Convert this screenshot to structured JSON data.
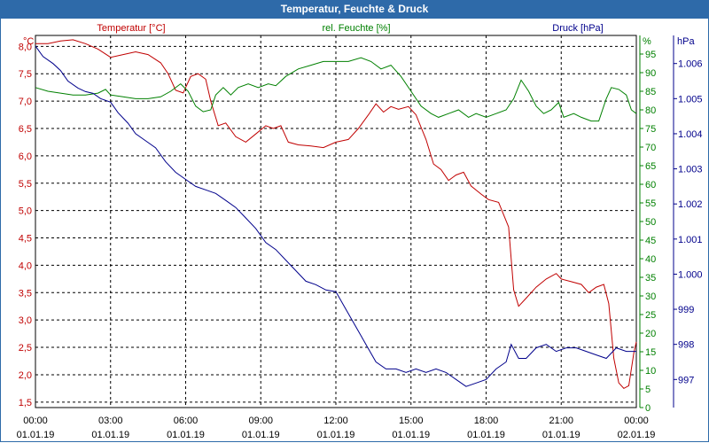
{
  "window": {
    "title": "Temperatur, Feuchte & Druck"
  },
  "colors": {
    "title_bg": "#2e6aa9",
    "temperature": "#c00000",
    "humidity": "#008000",
    "pressure": "#00008b",
    "grid": "#000000"
  },
  "chart_data": {
    "type": "line",
    "title": "Temperatur, Feuchte & Druck",
    "x_ticks": [
      {
        "t": 0,
        "time": "00:00",
        "date": "01.01.19"
      },
      {
        "t": 3,
        "time": "03:00",
        "date": "01.01.19"
      },
      {
        "t": 6,
        "time": "06:00",
        "date": "01.01.19"
      },
      {
        "t": 9,
        "time": "09:00",
        "date": "01.01.19"
      },
      {
        "t": 12,
        "time": "12:00",
        "date": "01.01.19"
      },
      {
        "t": 15,
        "time": "15:00",
        "date": "01.01.19"
      },
      {
        "t": 18,
        "time": "18:00",
        "date": "01.01.19"
      },
      {
        "t": 21,
        "time": "21:00",
        "date": "01.01.19"
      },
      {
        "t": 24,
        "time": "00:00",
        "date": "02.01.19"
      }
    ],
    "x_range": [
      0,
      24
    ],
    "axes": {
      "temperature": {
        "label": "Temperatur [°C]",
        "unit": "°C",
        "range": [
          1.4,
          8.2
        ],
        "ticks": [
          "1,5",
          "2,0",
          "2,5",
          "3,0",
          "3,5",
          "4,0",
          "4,5",
          "5,0",
          "5,5",
          "6,0",
          "6,5",
          "7,0",
          "7,5",
          "8,0"
        ]
      },
      "humidity": {
        "label": "rel. Feuchte [%]",
        "unit": "%",
        "range": [
          0,
          100
        ],
        "ticks": [
          "0",
          "5",
          "10",
          "15",
          "20",
          "25",
          "30",
          "35",
          "40",
          "45",
          "50",
          "55",
          "60",
          "65",
          "70",
          "75",
          "80",
          "85",
          "90",
          "95"
        ]
      },
      "pressure": {
        "label": "Druck [hPa]",
        "unit": "hPa",
        "range": [
          996.2,
          1006.8
        ],
        "ticks": [
          "997",
          "998",
          "999",
          "1.000",
          "1.001",
          "1.002",
          "1.003",
          "1.004",
          "1.005",
          "1.006"
        ]
      }
    },
    "series": [
      {
        "name": "Temperatur",
        "axis": "temperature",
        "points": [
          [
            0,
            8.05
          ],
          [
            0.5,
            8.05
          ],
          [
            1,
            8.1
          ],
          [
            1.5,
            8.12
          ],
          [
            2,
            8.05
          ],
          [
            2.5,
            7.95
          ],
          [
            3,
            7.8
          ],
          [
            3.5,
            7.85
          ],
          [
            4,
            7.9
          ],
          [
            4.5,
            7.85
          ],
          [
            5,
            7.7
          ],
          [
            5.3,
            7.5
          ],
          [
            5.6,
            7.2
          ],
          [
            5.9,
            7.15
          ],
          [
            6.2,
            7.45
          ],
          [
            6.5,
            7.5
          ],
          [
            6.8,
            7.4
          ],
          [
            7.0,
            7.0
          ],
          [
            7.3,
            6.55
          ],
          [
            7.6,
            6.6
          ],
          [
            8.0,
            6.35
          ],
          [
            8.4,
            6.25
          ],
          [
            8.8,
            6.4
          ],
          [
            9.2,
            6.55
          ],
          [
            9.5,
            6.5
          ],
          [
            9.8,
            6.55
          ],
          [
            10.1,
            6.25
          ],
          [
            10.5,
            6.2
          ],
          [
            11,
            6.18
          ],
          [
            11.5,
            6.15
          ],
          [
            12,
            6.25
          ],
          [
            12.5,
            6.3
          ],
          [
            12.9,
            6.5
          ],
          [
            13.3,
            6.75
          ],
          [
            13.6,
            6.95
          ],
          [
            13.9,
            6.8
          ],
          [
            14.2,
            6.9
          ],
          [
            14.5,
            6.85
          ],
          [
            14.9,
            6.9
          ],
          [
            15.2,
            6.75
          ],
          [
            15.6,
            6.3
          ],
          [
            15.9,
            5.85
          ],
          [
            16.2,
            5.75
          ],
          [
            16.5,
            5.55
          ],
          [
            16.8,
            5.65
          ],
          [
            17.1,
            5.7
          ],
          [
            17.4,
            5.45
          ],
          [
            17.8,
            5.3
          ],
          [
            18.1,
            5.2
          ],
          [
            18.5,
            5.15
          ],
          [
            18.9,
            4.7
          ],
          [
            19.1,
            3.55
          ],
          [
            19.3,
            3.25
          ],
          [
            19.6,
            3.4
          ],
          [
            20.0,
            3.6
          ],
          [
            20.4,
            3.75
          ],
          [
            20.8,
            3.85
          ],
          [
            21.0,
            3.75
          ],
          [
            21.4,
            3.7
          ],
          [
            21.8,
            3.65
          ],
          [
            22.1,
            3.5
          ],
          [
            22.4,
            3.6
          ],
          [
            22.7,
            3.65
          ],
          [
            22.9,
            3.3
          ],
          [
            23.1,
            2.3
          ],
          [
            23.3,
            1.85
          ],
          [
            23.5,
            1.75
          ],
          [
            23.7,
            1.8
          ],
          [
            23.9,
            2.4
          ],
          [
            24,
            2.6
          ]
        ]
      },
      {
        "name": "rel. Feuchte",
        "axis": "humidity",
        "points": [
          [
            0,
            86
          ],
          [
            0.5,
            85
          ],
          [
            1,
            84.5
          ],
          [
            1.5,
            84
          ],
          [
            2,
            84
          ],
          [
            2.5,
            84.5
          ],
          [
            2.8,
            85.5
          ],
          [
            3,
            84
          ],
          [
            3.5,
            83.5
          ],
          [
            4,
            83
          ],
          [
            4.5,
            83
          ],
          [
            5,
            83.5
          ],
          [
            5.4,
            85
          ],
          [
            5.8,
            87
          ],
          [
            6.1,
            85
          ],
          [
            6.4,
            81
          ],
          [
            6.7,
            79.5
          ],
          [
            7.0,
            80
          ],
          [
            7.2,
            84
          ],
          [
            7.5,
            86
          ],
          [
            7.8,
            84
          ],
          [
            8.1,
            86
          ],
          [
            8.5,
            87
          ],
          [
            8.9,
            86
          ],
          [
            9.3,
            87
          ],
          [
            9.6,
            86.5
          ],
          [
            10.0,
            89
          ],
          [
            10.5,
            91
          ],
          [
            11,
            92
          ],
          [
            11.5,
            93
          ],
          [
            12,
            93
          ],
          [
            12.5,
            93
          ],
          [
            13,
            94
          ],
          [
            13.4,
            93
          ],
          [
            13.8,
            91
          ],
          [
            14.2,
            92
          ],
          [
            14.6,
            89
          ],
          [
            15.0,
            85
          ],
          [
            15.4,
            81
          ],
          [
            15.8,
            79
          ],
          [
            16.1,
            78
          ],
          [
            16.5,
            79
          ],
          [
            16.9,
            80
          ],
          [
            17.3,
            78
          ],
          [
            17.6,
            79
          ],
          [
            18.0,
            78
          ],
          [
            18.4,
            79
          ],
          [
            18.8,
            80
          ],
          [
            19.1,
            83
          ],
          [
            19.4,
            88
          ],
          [
            19.7,
            85
          ],
          [
            20.0,
            81
          ],
          [
            20.3,
            79
          ],
          [
            20.6,
            80
          ],
          [
            20.9,
            82
          ],
          [
            21.1,
            78
          ],
          [
            21.5,
            79
          ],
          [
            21.8,
            78
          ],
          [
            22.2,
            77
          ],
          [
            22.5,
            77
          ],
          [
            22.8,
            83
          ],
          [
            23.0,
            86
          ],
          [
            23.3,
            85.5
          ],
          [
            23.6,
            84
          ],
          [
            23.8,
            80
          ],
          [
            24,
            79
          ]
        ]
      },
      {
        "name": "Druck",
        "axis": "pressure",
        "points": [
          [
            0,
            1006.5
          ],
          [
            0.3,
            1006.2
          ],
          [
            0.7,
            1006.0
          ],
          [
            1.0,
            1005.8
          ],
          [
            1.3,
            1005.5
          ],
          [
            1.7,
            1005.3
          ],
          [
            2.0,
            1005.2
          ],
          [
            2.3,
            1005.15
          ],
          [
            2.6,
            1005.0
          ],
          [
            3.0,
            1004.9
          ],
          [
            3.3,
            1004.6
          ],
          [
            3.7,
            1004.3
          ],
          [
            4.0,
            1004.0
          ],
          [
            4.4,
            1003.8
          ],
          [
            4.8,
            1003.6
          ],
          [
            5.2,
            1003.2
          ],
          [
            5.6,
            1002.9
          ],
          [
            6.0,
            1002.7
          ],
          [
            6.4,
            1002.5
          ],
          [
            6.8,
            1002.4
          ],
          [
            7.2,
            1002.3
          ],
          [
            7.6,
            1002.1
          ],
          [
            8.0,
            1001.9
          ],
          [
            8.4,
            1001.6
          ],
          [
            8.8,
            1001.3
          ],
          [
            9.2,
            1000.9
          ],
          [
            9.6,
            1000.7
          ],
          [
            10.0,
            1000.4
          ],
          [
            10.4,
            1000.1
          ],
          [
            10.8,
            999.8
          ],
          [
            11.2,
            999.7
          ],
          [
            11.6,
            999.55
          ],
          [
            12.0,
            999.5
          ],
          [
            12.4,
            999.0
          ],
          [
            12.8,
            998.5
          ],
          [
            13.2,
            998.0
          ],
          [
            13.6,
            997.5
          ],
          [
            14.0,
            997.3
          ],
          [
            14.4,
            997.3
          ],
          [
            14.8,
            997.2
          ],
          [
            15.2,
            997.3
          ],
          [
            15.6,
            997.2
          ],
          [
            16.0,
            997.3
          ],
          [
            16.4,
            997.2
          ],
          [
            16.8,
            997.0
          ],
          [
            17.2,
            996.8
          ],
          [
            17.6,
            996.9
          ],
          [
            18.0,
            997.0
          ],
          [
            18.4,
            997.3
          ],
          [
            18.8,
            997.5
          ],
          [
            19.0,
            998.0
          ],
          [
            19.3,
            997.6
          ],
          [
            19.6,
            997.6
          ],
          [
            20.0,
            997.9
          ],
          [
            20.4,
            998.0
          ],
          [
            20.8,
            997.8
          ],
          [
            21.2,
            997.9
          ],
          [
            21.6,
            997.9
          ],
          [
            22.0,
            997.8
          ],
          [
            22.4,
            997.7
          ],
          [
            22.8,
            997.6
          ],
          [
            23.2,
            997.9
          ],
          [
            23.6,
            997.8
          ],
          [
            24,
            997.8
          ]
        ]
      }
    ]
  }
}
